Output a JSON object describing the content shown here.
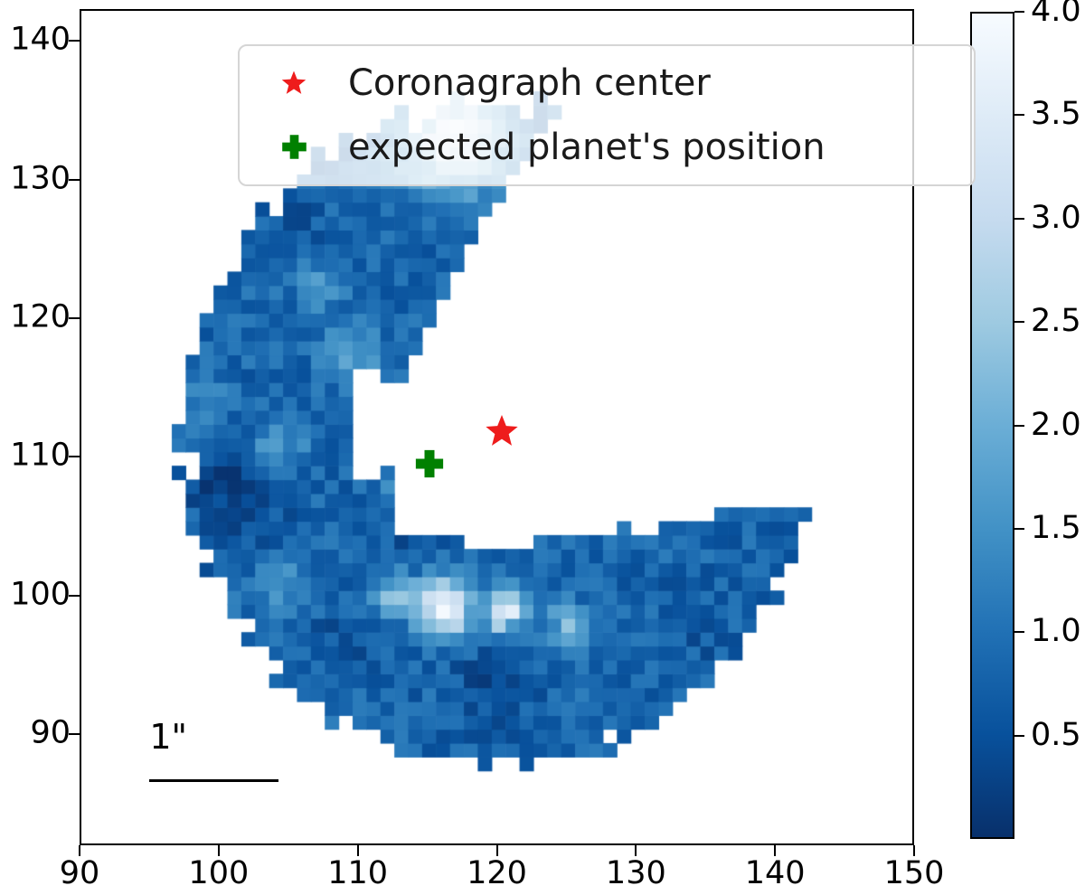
{
  "legend": {
    "items": [
      {
        "label": "Coronagraph center",
        "marker": "star",
        "color": "#ee1c1c"
      },
      {
        "label": "expected planet's position",
        "marker": "plus",
        "color": "#008000"
      }
    ]
  },
  "scalebar": {
    "label": "1\"",
    "x0": 94.9,
    "x1": 104.2,
    "y": 86.9
  },
  "chart_data": {
    "type": "heatmap",
    "title": "",
    "xlabel": "",
    "ylabel": "",
    "xlim": [
      90,
      150
    ],
    "ylim": [
      82,
      142.3
    ],
    "grid": false,
    "x_ticks": [
      {
        "value": 90,
        "label": "90"
      },
      {
        "value": 100,
        "label": "100"
      },
      {
        "value": 110,
        "label": "110"
      },
      {
        "value": 120,
        "label": "120"
      },
      {
        "value": 130,
        "label": "130"
      },
      {
        "value": 140,
        "label": "140"
      },
      {
        "value": 150,
        "label": "150"
      }
    ],
    "y_ticks": [
      {
        "value": 90,
        "label": "90"
      },
      {
        "value": 100,
        "label": "100"
      },
      {
        "value": 110,
        "label": "110"
      },
      {
        "value": 120,
        "label": "120"
      },
      {
        "value": 130,
        "label": "130"
      },
      {
        "value": 140,
        "label": "140"
      }
    ],
    "colorbar": {
      "vmin": 0,
      "vmax": 4,
      "ticks": [
        {
          "value": 0.5,
          "label": "0.5"
        },
        {
          "value": 1.0,
          "label": "1.0"
        },
        {
          "value": 1.5,
          "label": "1.5"
        },
        {
          "value": 2.0,
          "label": "2.0"
        },
        {
          "value": 2.5,
          "label": "2.5"
        },
        {
          "value": 3.0,
          "label": "3.0"
        },
        {
          "value": 3.5,
          "label": "3.5"
        },
        {
          "value": 4.0,
          "label": "4.0"
        }
      ]
    },
    "colormap_name": "Blues_r",
    "colormap_anchors": [
      "#f7fbff",
      "#deebf7",
      "#c6dbef",
      "#9ecae1",
      "#6baed6",
      "#4292c6",
      "#2171b5",
      "#08519c",
      "#08306b"
    ],
    "markers": [
      {
        "name": "coronagraph-center",
        "x": 120.25,
        "y": 112.0,
        "shape": "star",
        "color": "#ee1c1c",
        "size": 40
      },
      {
        "name": "expected-planet-position",
        "x": 115.0,
        "y": 109.65,
        "shape": "plus",
        "color": "#008000",
        "size": 33
      }
    ],
    "heatmap": {
      "comment": "annulus of 1x1 data-unit cells; values in [0,4], colormap Blues reversed",
      "grid_range": {
        "x": [
          95,
          144
        ],
        "y": [
          87,
          137
        ]
      },
      "center": [
        120,
        111.8
      ],
      "r_outer": 22.8,
      "y_aniso": 1.045,
      "edge_noise": 0.85,
      "hole": {
        "cx": 120,
        "cy": 111.5,
        "r": 7.9
      },
      "mask_rects": [
        [
          109.9,
          108.8,
          111.9,
          115.4
        ],
        [
          111.9,
          109.9,
          112.45,
          115.4
        ],
        [
          109.9,
          115.4,
          111.9,
          116.9
        ]
      ],
      "gap": {
        "x_min": 112.4,
        "low_y": 104.35,
        "low_x0": 126.5,
        "low_slope": 0.167,
        "low_noise": 0.35,
        "up_x0": 113,
        "up_y0": 115,
        "up_a": 2.33,
        "up_b": -0.05
      },
      "base_value": 0.82,
      "value_noise": 0.38,
      "bumps": [
        [
          116.2,
          99.3,
          1.35,
          3.2
        ],
        [
          120.7,
          99.0,
          1.15,
          2.9
        ],
        [
          125.0,
          98.2,
          1.0,
          1.5
        ],
        [
          112.4,
          100.3,
          1.2,
          1.3
        ],
        [
          116.8,
          133.2,
          2.6,
          2.6
        ],
        [
          104.2,
          110.8,
          1.3,
          0.85
        ],
        [
          98.8,
          114.2,
          1.2,
          0.55
        ],
        [
          109.4,
          117.8,
          1.5,
          0.9
        ],
        [
          107.2,
          122.8,
          1.3,
          0.7
        ],
        [
          104.4,
          100.8,
          1.6,
          0.6
        ],
        [
          113.0,
          108.3,
          0.9,
          1.0
        ],
        [
          118.6,
          99.2,
          0.7,
          -0.8
        ],
        [
          122.9,
          98.4,
          0.6,
          -0.5
        ],
        [
          121.1,
          98.0,
          0.45,
          -0.9
        ],
        [
          101.5,
          106.5,
          2.2,
          -0.5
        ],
        [
          119.2,
          93.6,
          2.0,
          -0.35
        ],
        [
          108.6,
          96.8,
          1.5,
          -0.3
        ],
        [
          99.8,
          108.9,
          1.4,
          -0.35
        ],
        [
          105.2,
          127.6,
          1.5,
          -0.35
        ],
        [
          113.8,
          104.6,
          1.2,
          -0.35
        ],
        [
          134.5,
          97.5,
          3.0,
          -0.15
        ]
      ]
    }
  }
}
